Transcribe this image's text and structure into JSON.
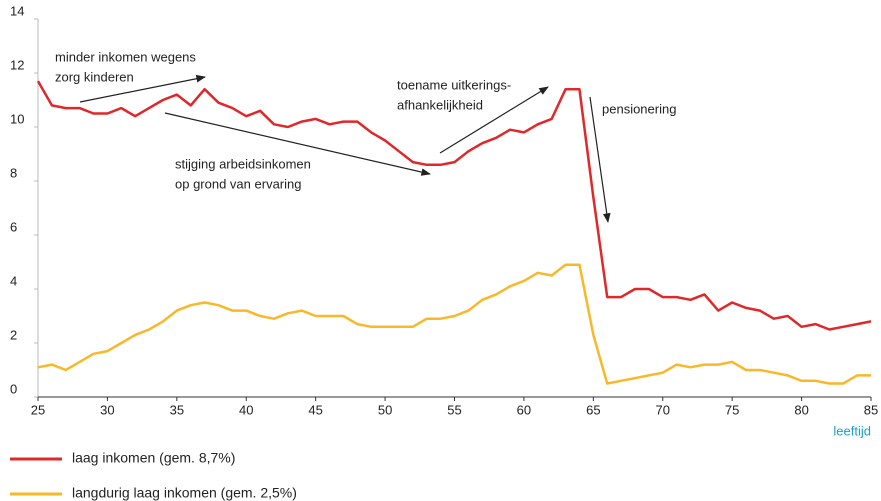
{
  "chart_data": {
    "type": "line",
    "x": [
      25,
      26,
      27,
      28,
      29,
      30,
      31,
      32,
      33,
      34,
      35,
      36,
      37,
      38,
      39,
      40,
      41,
      42,
      43,
      44,
      45,
      46,
      47,
      48,
      49,
      50,
      51,
      52,
      53,
      54,
      55,
      56,
      57,
      58,
      59,
      60,
      61,
      62,
      63,
      64,
      65,
      66,
      67,
      68,
      69,
      70,
      71,
      72,
      73,
      74,
      75,
      76,
      77,
      78,
      79,
      80,
      81,
      82,
      83,
      84,
      85
    ],
    "series": [
      {
        "name": "laag inkomen (gem. 8,7%)",
        "color": "#e0282a",
        "values": [
          11.7,
          10.8,
          10.7,
          10.7,
          10.5,
          10.5,
          10.7,
          10.4,
          10.7,
          11.0,
          11.2,
          10.8,
          11.4,
          10.9,
          10.7,
          10.4,
          10.6,
          10.1,
          10.0,
          10.2,
          10.3,
          10.1,
          10.2,
          10.2,
          9.8,
          9.5,
          9.1,
          8.7,
          8.6,
          8.6,
          8.7,
          9.1,
          9.4,
          9.6,
          9.9,
          9.8,
          10.1,
          10.3,
          11.4,
          11.4,
          7.4,
          3.7,
          3.7,
          4.0,
          4.0,
          3.7,
          3.7,
          3.6,
          3.8,
          3.2,
          3.5,
          3.3,
          3.2,
          2.9,
          3.0,
          2.6,
          2.7,
          2.5,
          2.6,
          2.7,
          2.8
        ]
      },
      {
        "name": "langdurig laag inkomen (gem. 2,5%)",
        "color": "#f9b82a",
        "values": [
          1.1,
          1.2,
          1.0,
          1.3,
          1.6,
          1.7,
          2.0,
          2.3,
          2.5,
          2.8,
          3.2,
          3.4,
          3.5,
          3.4,
          3.2,
          3.2,
          3.0,
          2.9,
          3.1,
          3.2,
          3.0,
          3.0,
          3.0,
          2.7,
          2.6,
          2.6,
          2.6,
          2.6,
          2.9,
          2.9,
          3.0,
          3.2,
          3.6,
          3.8,
          4.1,
          4.3,
          4.6,
          4.5,
          4.9,
          4.9,
          2.3,
          0.5,
          0.6,
          0.7,
          0.8,
          0.9,
          1.2,
          1.1,
          1.2,
          1.2,
          1.3,
          1.0,
          1.0,
          0.9,
          0.8,
          0.6,
          0.6,
          0.5,
          0.5,
          0.8,
          0.8
        ]
      }
    ],
    "xlabel": "leeftijd",
    "xlim": [
      25,
      85
    ],
    "xticks": [
      25,
      30,
      35,
      40,
      45,
      50,
      55,
      60,
      65,
      70,
      75,
      80,
      85
    ],
    "ylim": [
      0,
      14
    ],
    "yticks": [
      0,
      2,
      4,
      6,
      8,
      10,
      12,
      14
    ],
    "grid": false,
    "annotations": [
      {
        "lines": [
          "minder inkomen wegens",
          "zorg kinderen"
        ]
      },
      {
        "lines": [
          "stijging arbeidsinkomen",
          "op grond van ervaring"
        ]
      },
      {
        "lines": [
          "toename uitkerings-",
          "afhankelijkheid"
        ]
      },
      {
        "lines": [
          "pensionering"
        ]
      }
    ]
  }
}
